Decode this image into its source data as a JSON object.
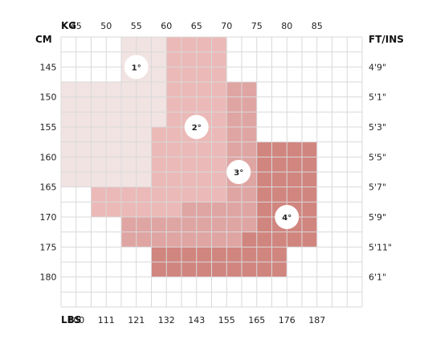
{
  "chart_data": {
    "type": "heatmap",
    "top_axis": {
      "label": "KG",
      "ticks": [
        "45",
        "50",
        "55",
        "60",
        "65",
        "70",
        "75",
        "80",
        "85"
      ]
    },
    "bottom_axis": {
      "label": "LBS",
      "ticks": [
        "100",
        "111",
        "121",
        "132",
        "143",
        "155",
        "165",
        "176",
        "187"
      ]
    },
    "left_axis": {
      "label": "CM",
      "ticks": [
        "145",
        "150",
        "155",
        "160",
        "165",
        "170",
        "175",
        "180"
      ]
    },
    "right_axis": {
      "label": "FT/INS",
      "ticks": [
        "4'9\"",
        "5'1\"",
        "5'3\"",
        "5'5\"",
        "5'7\"",
        "5'9\"",
        "5'11\"",
        "6'1\""
      ]
    },
    "grid": true,
    "sizes": [
      {
        "label": "1°",
        "color": "#f2e3e3",
        "marker": {
          "kg": 55,
          "cm": 145
        },
        "regions": [
          {
            "kg": [
              52.5,
              57.5
            ],
            "cm": [
              140,
              160
            ]
          },
          {
            "kg": [
              57.5,
              60
            ],
            "cm": [
              140,
              155
            ]
          },
          {
            "kg": [
              42.5,
              52.5
            ],
            "cm": [
              147.5,
              165
            ]
          },
          {
            "kg": [
              52.5,
              57.5
            ],
            "cm": [
              160,
              165
            ]
          }
        ]
      },
      {
        "label": "2°",
        "color": "#ebb9b7",
        "marker": {
          "kg": 65,
          "cm": 155
        },
        "regions": [
          {
            "kg": [
              60,
              70
            ],
            "cm": [
              140,
              160
            ]
          },
          {
            "kg": [
              57.5,
              60
            ],
            "cm": [
              155,
              160
            ]
          },
          {
            "kg": [
              57.5,
              70
            ],
            "cm": [
              160,
              167.5
            ]
          },
          {
            "kg": [
              47.5,
              57.5
            ],
            "cm": [
              165,
              170
            ]
          },
          {
            "kg": [
              57.5,
              62.5
            ],
            "cm": [
              167.5,
              170
            ]
          }
        ]
      },
      {
        "label": "3°",
        "color": "#dfa5a3",
        "marker": {
          "kg": 72,
          "cm": 162.5
        },
        "regions": [
          {
            "kg": [
              70,
              75
            ],
            "cm": [
              147.5,
              172.5
            ]
          },
          {
            "kg": [
              62.5,
              70
            ],
            "cm": [
              167.5,
              170
            ]
          },
          {
            "kg": [
              52.5,
              70
            ],
            "cm": [
              170,
              172.5
            ]
          },
          {
            "kg": [
              52.5,
              72.5
            ],
            "cm": [
              172.5,
              175
            ]
          }
        ]
      },
      {
        "label": "4°",
        "color": "#d1857f",
        "marker": {
          "kg": 80,
          "cm": 170
        },
        "regions": [
          {
            "kg": [
              75,
              85
            ],
            "cm": [
              157.5,
              175
            ]
          },
          {
            "kg": [
              72.5,
              75
            ],
            "cm": [
              172.5,
              175
            ]
          },
          {
            "kg": [
              57.5,
              80
            ],
            "cm": [
              175,
              180
            ]
          }
        ]
      }
    ]
  }
}
